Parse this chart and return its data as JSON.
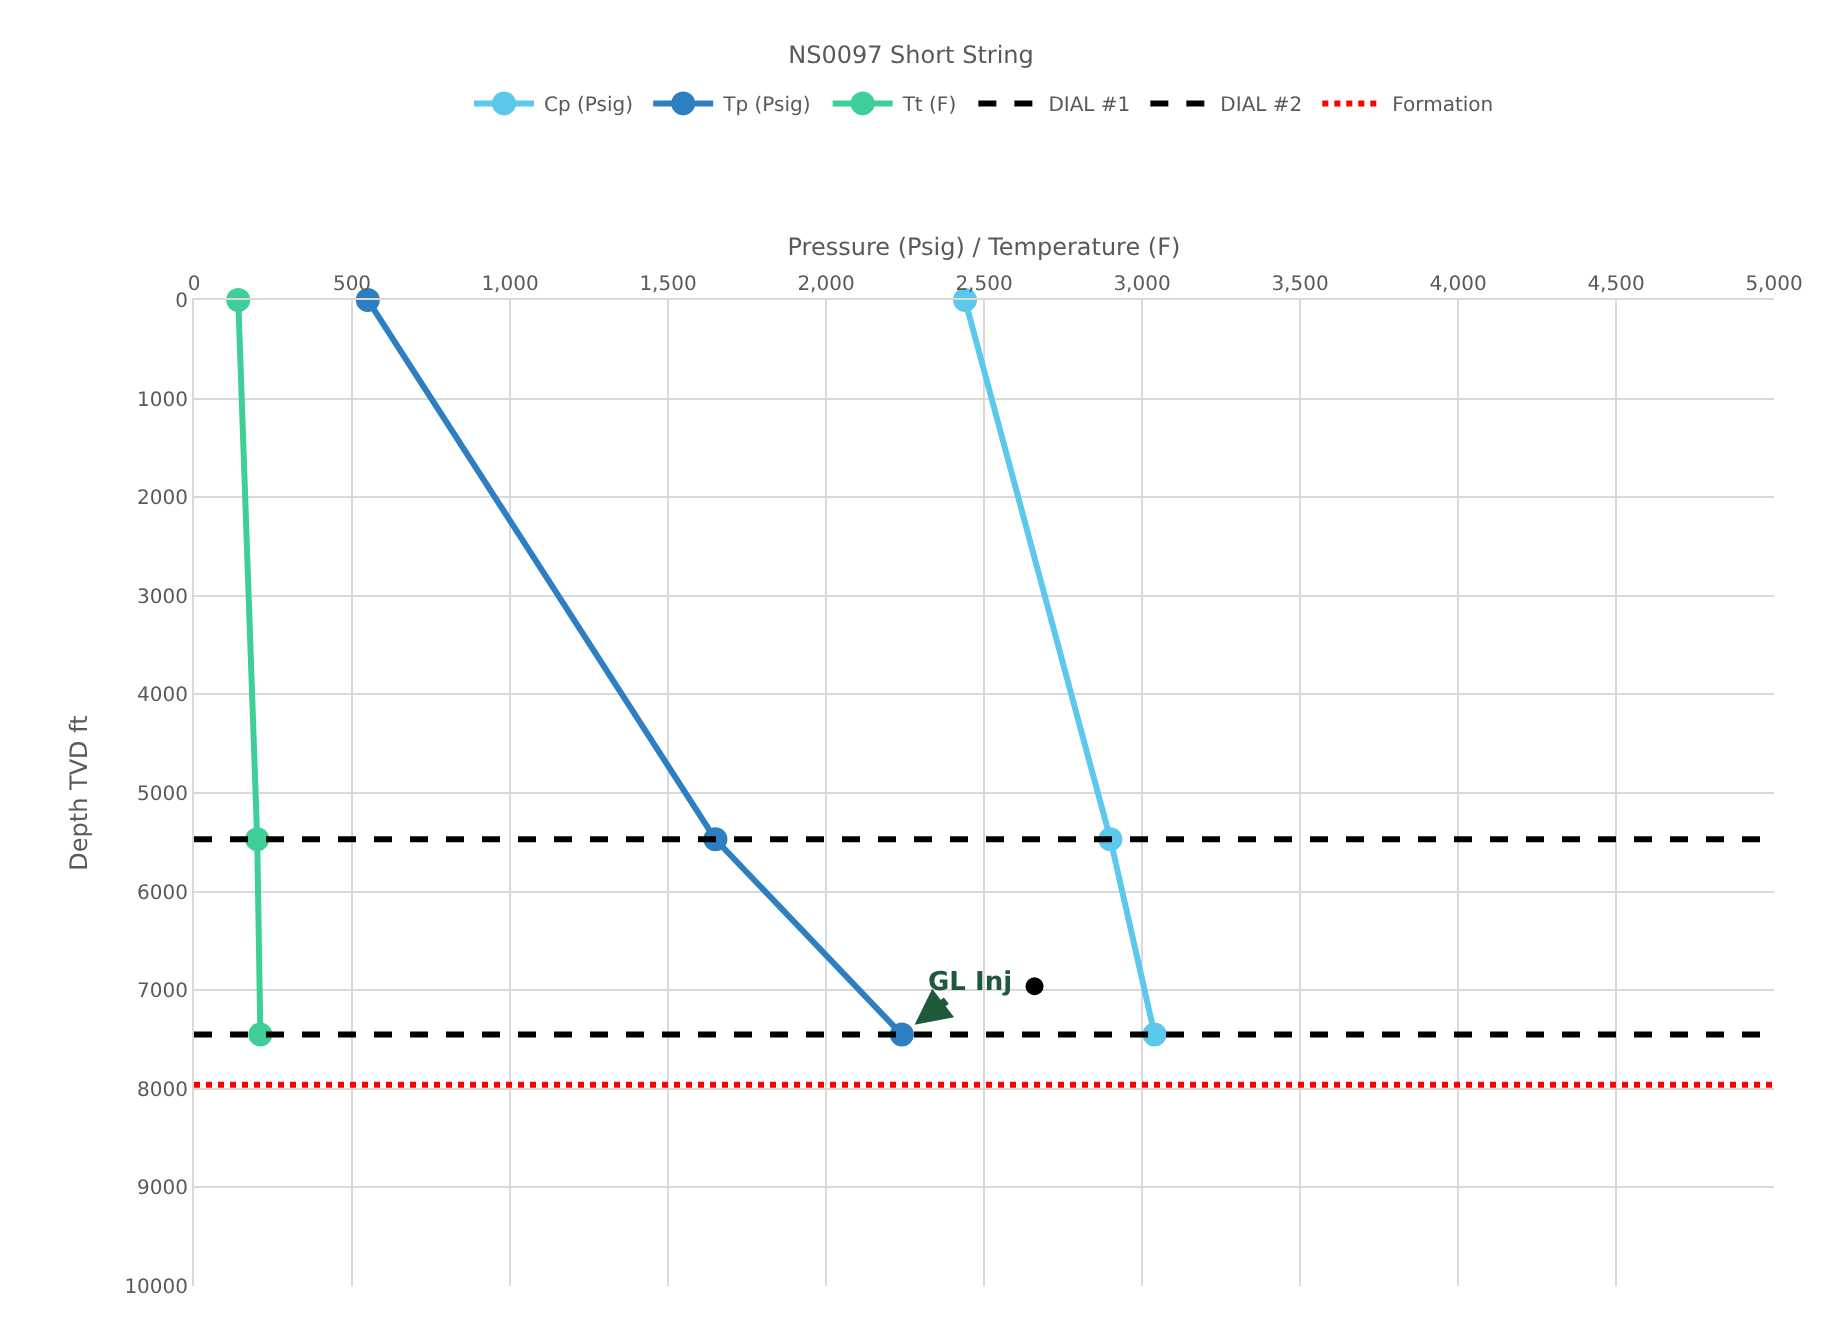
{
  "chart_data": {
    "type": "line",
    "title": "NS0097 Short String",
    "xlabel": "Pressure (Psig) / Temperature (F)",
    "ylabel": "Depth TVD ft",
    "series": [
      {
        "name": "Cp (Psig)",
        "color": "#5bc8ec",
        "x": [
          2440,
          2900,
          3040
        ],
        "values": [
          0,
          5470,
          7450
        ]
      },
      {
        "name": "Tp (Psig)",
        "color": "#2e7fc2",
        "x": [
          550,
          1650,
          2240
        ],
        "values": [
          0,
          5470,
          7450
        ]
      },
      {
        "name": "Tt (F)",
        "color": "#3ecf98",
        "x": [
          140,
          200,
          210
        ],
        "values": [
          0,
          5470,
          7450
        ]
      },
      {
        "type": "scatter",
        "color": "#000000",
        "x": [
          2660
        ],
        "values": [
          6960
        ]
      }
    ],
    "ref_lines": [
      {
        "axis": "y",
        "value": 5470,
        "label": "DIAL #1",
        "color": "#000000",
        "line_style": "dashed"
      },
      {
        "axis": "y",
        "value": 7450,
        "label": "DIAL #2",
        "color": "#000000",
        "line_style": "dashed"
      },
      {
        "axis": "y",
        "value": 7960,
        "label": "Formation",
        "color": "#ff0000",
        "line_style": "dotted"
      }
    ],
    "annotations": [
      {
        "text": "GL Inj",
        "x": 2240,
        "y": 7450
      }
    ],
    "xlim": [
      0,
      5000
    ],
    "xticks": [
      0,
      500,
      {
        "value": 1000,
        "label": "1,000"
      },
      {
        "value": 1500,
        "label": "1,500"
      },
      {
        "value": 2000,
        "label": "2,000"
      },
      {
        "value": 2500,
        "label": "2,500"
      },
      {
        "value": 3000,
        "label": "3,000"
      },
      {
        "value": 3500,
        "label": "3,500"
      },
      {
        "value": 4000,
        "label": "4,000"
      },
      {
        "value": 4500,
        "label": "4,500"
      },
      {
        "value": 5000,
        "label": "5,000"
      }
    ],
    "ylim": [
      10000,
      0
    ],
    "yticks": [
      0,
      1000,
      2000,
      3000,
      4000,
      5000,
      6000,
      7000,
      8000,
      9000,
      10000
    ],
    "grid": true,
    "legend": "top",
    "marker": "circle",
    "line_style": "solid"
  }
}
